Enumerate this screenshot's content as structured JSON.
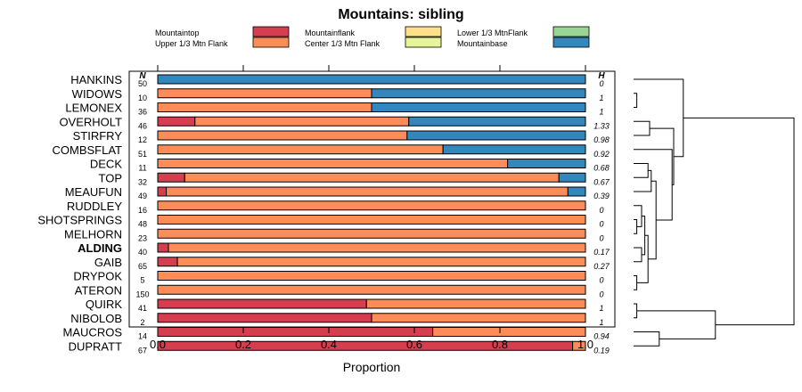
{
  "chart_data": {
    "type": "bar",
    "stacked": true,
    "orientation": "horizontal",
    "title": "Mountains: sibling",
    "xlabel": "Proportion",
    "ylabel": "",
    "xlim": [
      0,
      1
    ],
    "xticks": [
      "0.0",
      "0.2",
      "0.4",
      "0.6",
      "0.8",
      "1.0"
    ],
    "n_header": "N",
    "h_header": "H",
    "highlight_category": "ALDING",
    "legend_position": "top",
    "legend": [
      {
        "name": "Mountaintop",
        "color": "#d53e4f"
      },
      {
        "name": "Upper 1/3 Mtn Flank",
        "color": "#fc8d59"
      },
      {
        "name": "Mountainflank",
        "color": "#fee08b"
      },
      {
        "name": "Center 1/3 Mtn Flank",
        "color": "#e6f598"
      },
      {
        "name": "Lower 1/3 MtnFlank",
        "color": "#99d594"
      },
      {
        "name": "Mountainbase",
        "color": "#3288bd"
      }
    ],
    "categories": [
      "HANKINS",
      "WIDOWS",
      "LEMONEX",
      "OVERHOLT",
      "STIRFRY",
      "COMBSFLAT",
      "DECK",
      "TOP",
      "MEAUFUN",
      "RUDDLEY",
      "SHOTSPRINGS",
      "MELHORN",
      "ALDING",
      "GAIB",
      "DRYPOK",
      "ATERON",
      "QUIRK",
      "NIBOLOB",
      "MAUCROS",
      "DUPRATT"
    ],
    "n": [
      "50",
      "10",
      "36",
      "46",
      "12",
      "51",
      "11",
      "32",
      "49",
      "16",
      "48",
      "23",
      "40",
      "65",
      "5",
      "150",
      "41",
      "2",
      "14",
      "67"
    ],
    "h": [
      "0",
      "1",
      "1",
      "1.33",
      "0.98",
      "0.92",
      "0.68",
      "0.67",
      "0.39",
      "0",
      "0",
      "0",
      "0.17",
      "0.27",
      "0",
      "0",
      "1",
      "1",
      "0.94",
      "0.19"
    ],
    "series": [
      {
        "name": "Mountaintop",
        "values": [
          0,
          0,
          0,
          0.087,
          0,
          0,
          0,
          0.063,
          0.02,
          0,
          0,
          0,
          0.025,
          0.046,
          0,
          0,
          0.488,
          0.5,
          0.643,
          0.97
        ]
      },
      {
        "name": "Upper 1/3 Mtn Flank",
        "values": [
          0,
          0.5,
          0.5,
          0.5,
          0.583,
          0.667,
          0.818,
          0.875,
          0.939,
          1.0,
          1.0,
          1.0,
          0.975,
          0.954,
          1.0,
          1.0,
          0.512,
          0.5,
          0.357,
          0.03
        ]
      },
      {
        "name": "Mountainflank",
        "values": [
          0,
          0,
          0,
          0,
          0,
          0,
          0,
          0,
          0,
          0,
          0,
          0,
          0,
          0,
          0,
          0,
          0,
          0,
          0,
          0
        ]
      },
      {
        "name": "Center 1/3 Mtn Flank",
        "values": [
          0,
          0,
          0,
          0,
          0,
          0,
          0,
          0,
          0,
          0,
          0,
          0,
          0,
          0,
          0,
          0,
          0,
          0,
          0,
          0
        ]
      },
      {
        "name": "Lower 1/3 MtnFlank",
        "values": [
          0,
          0,
          0,
          0,
          0,
          0,
          0,
          0,
          0,
          0,
          0,
          0,
          0,
          0,
          0,
          0,
          0,
          0,
          0,
          0
        ]
      },
      {
        "name": "Mountainbase",
        "values": [
          1.0,
          0.5,
          0.5,
          0.413,
          0.417,
          0.333,
          0.182,
          0.062,
          0.041,
          0,
          0,
          0,
          0,
          0,
          0,
          0,
          0,
          0,
          0,
          0
        ]
      }
    ],
    "dendrogram": [
      {
        "a": 1,
        "b": 2,
        "h": 0.02
      },
      {
        "a": 3,
        "b": 4,
        "h": 0.1
      },
      {
        "a": 10,
        "b": 11,
        "h": 0.02
      },
      {
        "a": 14,
        "b": 15,
        "h": 0.02
      },
      {
        "a": 22,
        "b": 9,
        "h": 0.05
      },
      {
        "a": 12,
        "b": 13,
        "h": 0.05
      },
      {
        "a": 16,
        "b": 17,
        "h": 0.02
      },
      {
        "a": 24,
        "b": 25,
        "h": 0.07
      },
      {
        "a": 23,
        "b": 27,
        "h": 0.09
      },
      {
        "a": 6,
        "b": 7,
        "h": 0.09
      },
      {
        "a": 29,
        "b": 8,
        "h": 0.11
      },
      {
        "a": 30,
        "b": 28,
        "h": 0.14
      },
      {
        "a": 5,
        "b": 31,
        "h": 0.24
      },
      {
        "a": 21,
        "b": 32,
        "h": 0.25
      },
      {
        "a": 33,
        "b": 0,
        "h": 0.31
      },
      {
        "a": 18,
        "b": 19,
        "h": 0.16
      },
      {
        "a": 26,
        "b": 35,
        "h": 0.51
      },
      {
        "a": 34,
        "b": 36,
        "h": 1.0
      }
    ]
  }
}
